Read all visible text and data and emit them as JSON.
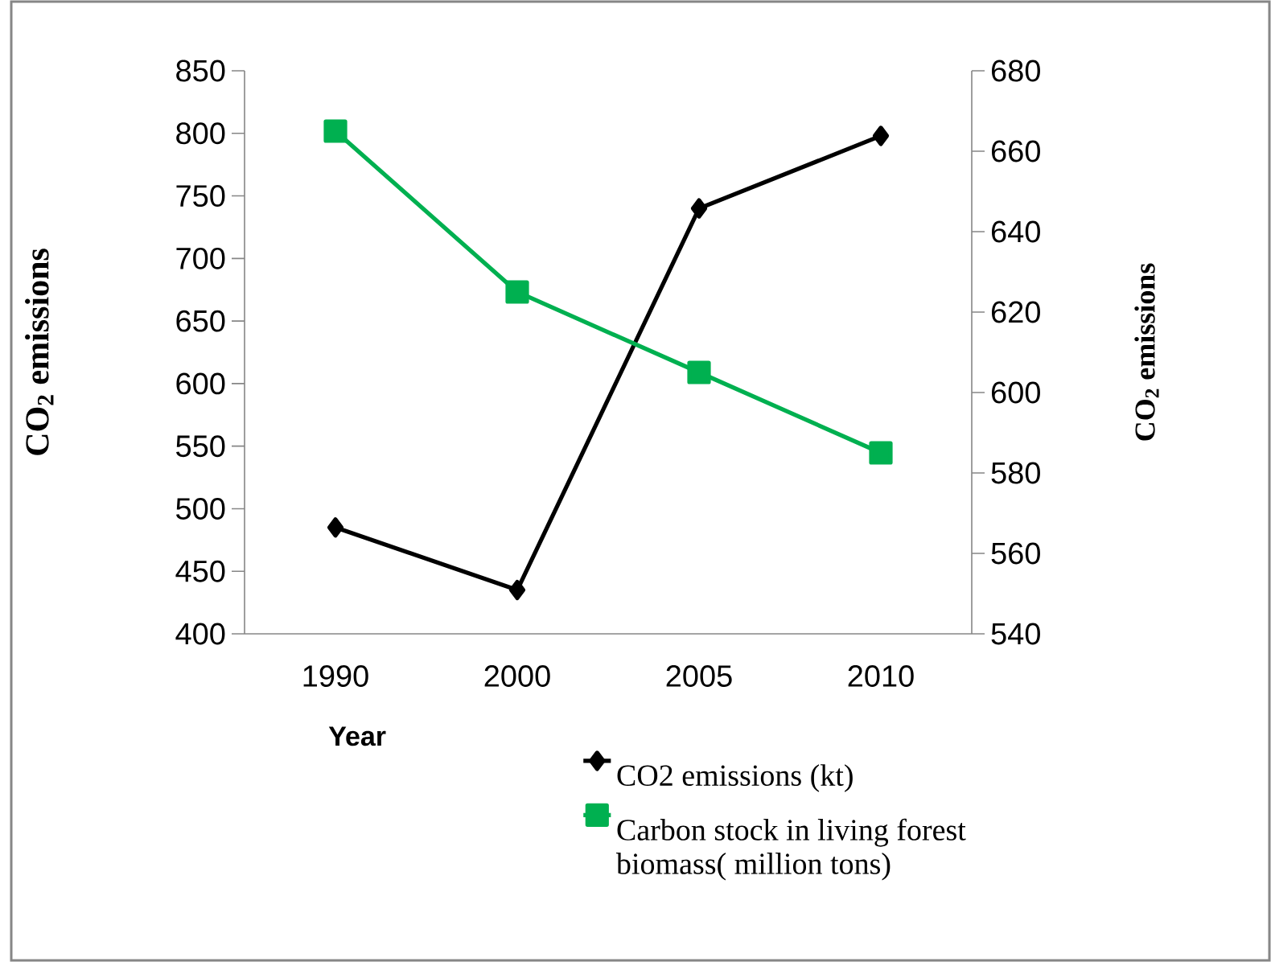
{
  "chart_data": {
    "type": "line",
    "xlabel": "Year",
    "ylabel": "CO$_{2}$ emissions",
    "y2label": "CO$_{2}$ emissions",
    "categories": [
      "1990",
      "2000",
      "2005",
      "2010"
    ],
    "series": [
      {
        "name": "CO2 emissions (kt)",
        "color": "#000000",
        "marker": "diamond",
        "values": [
          485,
          435,
          740,
          798
        ]
      },
      {
        "name": "Carbon stock in living forest biomass( million tons)",
        "color": "#00b050",
        "marker": "square",
        "axis": "y2",
        "values": [
          665,
          625,
          605,
          585
        ]
      }
    ],
    "ylim": [
      400,
      850
    ],
    "yticks": [
      400,
      450,
      500,
      550,
      600,
      650,
      700,
      750,
      800,
      850
    ],
    "y2lim": [
      540,
      680
    ],
    "y2ticks": [
      540,
      560,
      580,
      600,
      620,
      640,
      660,
      680
    ],
    "legend": "bottom"
  }
}
